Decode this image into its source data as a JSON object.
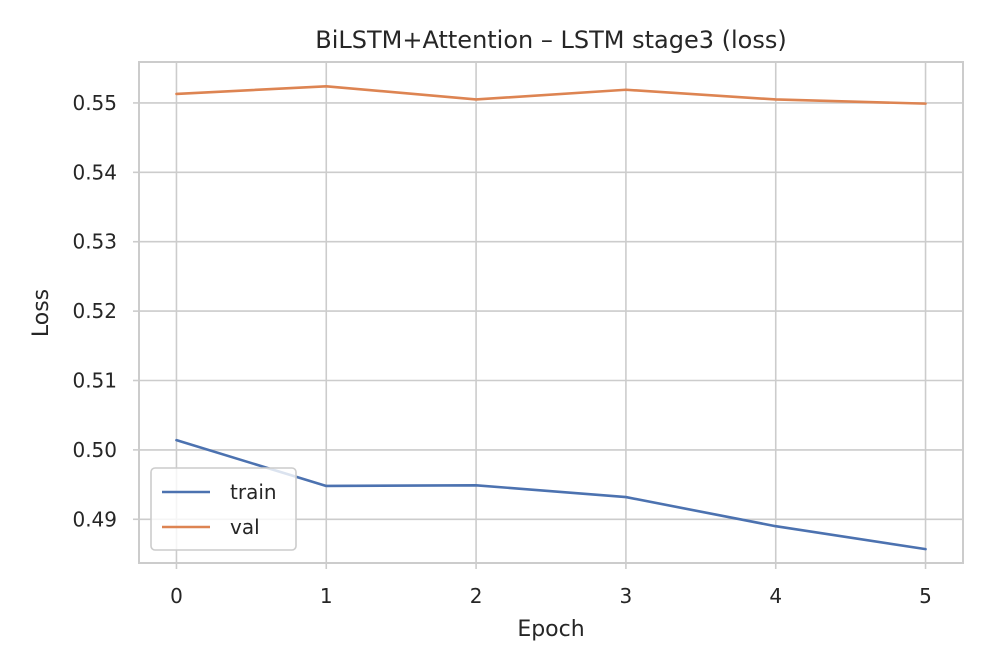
{
  "chart_data": {
    "type": "line",
    "title": "BiLSTM+Attention – LSTM stage3 (loss)",
    "xlabel": "Epoch",
    "ylabel": "Loss",
    "x": [
      0,
      1,
      2,
      3,
      4,
      5
    ],
    "xlim": [
      -0.25,
      5.25
    ],
    "ylim": [
      0.4837,
      0.5559
    ],
    "xticks": [
      "0",
      "1",
      "2",
      "3",
      "4",
      "5"
    ],
    "yticks": [
      0.49,
      0.5,
      0.51,
      0.52,
      0.53,
      0.54,
      0.55
    ],
    "ytick_labels": [
      "0.49",
      "0.50",
      "0.51",
      "0.52",
      "0.53",
      "0.54",
      "0.55"
    ],
    "grid": true,
    "legend_position": "lower-left",
    "series": [
      {
        "name": "train",
        "color": "#4c72b0",
        "values": [
          0.5014,
          0.4948,
          0.4949,
          0.4932,
          0.489,
          0.4857
        ]
      },
      {
        "name": "val",
        "color": "#dd8452",
        "values": [
          0.5513,
          0.5524,
          0.5505,
          0.5519,
          0.5505,
          0.5499
        ]
      }
    ]
  }
}
